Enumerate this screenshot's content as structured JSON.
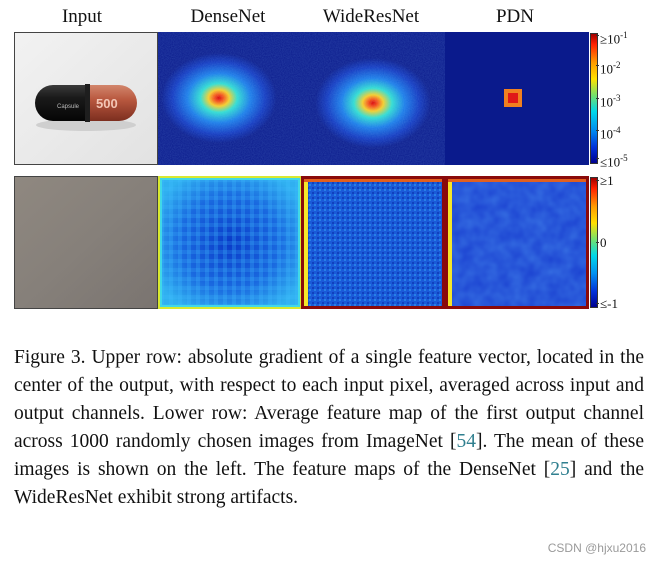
{
  "columns": [
    "Input",
    "DenseNet",
    "WideResNet",
    "PDN"
  ],
  "colorbar_top": {
    "ticks": [
      "≥10^-1",
      "10^-2",
      "10^-3",
      "10^-4",
      "≤10^-5"
    ],
    "tick_base": [
      "≥10",
      "10",
      "10",
      "10",
      "≤10"
    ],
    "tick_exp": [
      "-1",
      "-2",
      "-3",
      "-4",
      "-5"
    ]
  },
  "colorbar_bottom": {
    "ticks": [
      "≥1",
      "0",
      "≤-1"
    ]
  },
  "input_image": {
    "capsule_text": "500",
    "capsule_logo": "Capsule"
  },
  "caption": {
    "part1": "Figure 3. Upper row: absolute gradient of a single feature vector, located in the center of the output, with respect to each input pixel, averaged across input and output channels. Lower row: Average feature map of the first output channel across 1000 randomly chosen images from ImageNet [",
    "cite1": "54",
    "part2": "]. The mean of these images is shown on the left. The feature maps of the DenseNet [",
    "cite2": "25",
    "part3": "] and the WideResNet exhibit strong artifacts."
  },
  "watermark": "CSDN @hjxu2016",
  "colors": {
    "navy": "#0a1a8c",
    "blue": "#1f4fd8",
    "cyan": "#22c8e8",
    "yellow": "#f5e62a",
    "red": "#e02020",
    "darkred": "#8a0a0a"
  }
}
